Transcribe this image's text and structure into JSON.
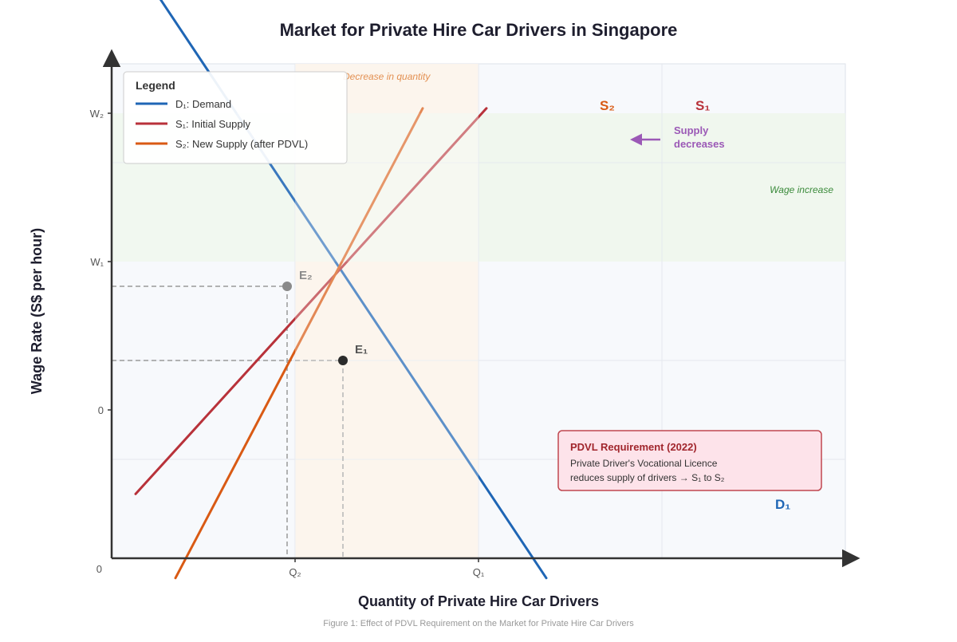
{
  "title": "Market for Private Hire Car Drivers in Singapore",
  "caption": "Figure 1: Effect of PDVL Requirement on the Market for Private Hire Car Drivers",
  "colors": {
    "demand": "#1f66b5",
    "supply1": "#b8323a",
    "supply2": "#d95a14",
    "arrow": "#9b59b6",
    "axis": "#333333",
    "wage_zone": "#eef5ea",
    "qty_zone": "#fbf1e2",
    "plot_bg": "#f7f9fc",
    "note_bg": "#fde3ea",
    "note_border": "#c0474f"
  },
  "chart_data": {
    "type": "line",
    "title": "Market for Private Hire Car Drivers in Singapore",
    "xlabel": "Quantity of Private Hire Car Drivers",
    "ylabel": "Wage Rate (S$ per hour)",
    "origin_label": "0",
    "x_tick_labels": [
      "Q₂",
      "Q₁"
    ],
    "y_tick_labels": [
      "0",
      "W₁",
      "W₂"
    ],
    "series": [
      {
        "name": "D₁",
        "legend": "D₁: Demand",
        "points": [
          [
            0.4,
            9.3
          ],
          [
            10.9,
            -3.4
          ]
        ]
      },
      {
        "name": "S₁",
        "legend": "S₁: Initial Supply",
        "points": [
          [
            0.6,
            -1.7
          ],
          [
            9.4,
            6.1
          ]
        ]
      },
      {
        "name": "S₂",
        "legend": "S₂: New Supply (after PDVL)",
        "points": [
          [
            1.6,
            -3.4
          ],
          [
            7.8,
            6.1
          ]
        ]
      }
    ],
    "equilibria": [
      {
        "label": "E₁",
        "x": 5.8,
        "y": 1.0
      },
      {
        "label": "E₂",
        "x": 4.4,
        "y": 2.5
      }
    ],
    "legend_title": "Legend",
    "legend_position": "top-left",
    "grid": true
  },
  "annotations": {
    "supply_arrow": "Supply decreases",
    "supply_arrow_line1": "Supply",
    "supply_arrow_line2": "decreases",
    "wage_zone": "Wage increase",
    "qty_zone": "Decrease in quantity"
  },
  "note": {
    "title": "PDVL Requirement (2022)",
    "line1": "Private Driver's Vocational Licence",
    "line2": "reduces supply of drivers → S₁ to S₂"
  }
}
